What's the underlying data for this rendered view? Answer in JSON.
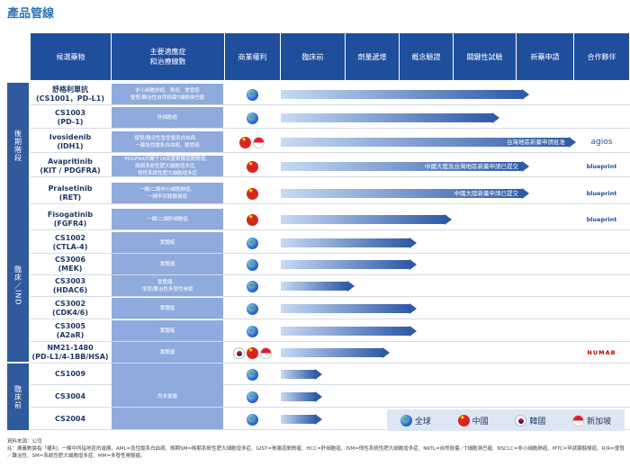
{
  "title": "產品管線",
  "header": {
    "drug": "候選藥物",
    "indication": "主要適應症\n和治療線數",
    "rights": "商業權利",
    "preclinical": "臨床前",
    "dose": "劑量遞增",
    "poc": "概念驗證",
    "pivotal": "關鍵性試驗",
    "nda": "新藥申請",
    "partner": "合作夥伴"
  },
  "groups": [
    {
      "label": "後期階段"
    },
    {
      "label": "臨床／IND"
    },
    {
      "label": "臨床前"
    }
  ],
  "rows": [
    {
      "drug": "舒格利單抗\n(CS1001，PD-L1)",
      "indication": "非小細胞肺癌、胃癌、食管癌\n復發/難治性自然殺傷T細胞淋巴瘤",
      "rights": [
        "globe"
      ],
      "progress": 0.84,
      "bar_text": "",
      "partner": ""
    },
    {
      "drug": "CS1003\n(PD-1)",
      "indication": "肝細胞癌",
      "rights": [
        "globe"
      ],
      "progress": 0.74,
      "bar_text": "",
      "partner": ""
    },
    {
      "drug": "Ivosidenib\n(IDH1)",
      "indication": "復發/難治性急性髓系白血病、\n一線急性髓系白血病、膽管癌",
      "rights": [
        "cn",
        "sg"
      ],
      "progress": 1.0,
      "bar_text": "台灣地區新藥申請批准",
      "partner": "agios"
    },
    {
      "drug": "Avapritinib\n(KIT / PDGFRA)",
      "indication": "PDGFRA外顯子18突變胃腸道間質瘤、\n晚期系統性肥大細胞增多症、\n惰性系統性肥大細胞增多症",
      "rights": [
        "cn"
      ],
      "progress": 0.84,
      "bar_text": "中國大陸及台灣地區新藥申請已提交",
      "partner": "blueprint"
    },
    {
      "drug": "Pralsetinib\n(RET)",
      "indication": "一線/二線非小細胞肺癌、\n一線甲狀腺髓樣癌",
      "rights": [
        "cn"
      ],
      "progress": 0.84,
      "bar_text": "中國大陸新藥申請已提交",
      "partner": "blueprint"
    },
    {
      "drug": "Fisogatinib\n(FGFR4)",
      "indication": "一線/二線肝細胞癌",
      "rights": [
        "cn"
      ],
      "progress": 0.58,
      "bar_text": "",
      "partner": "blueprint"
    },
    {
      "drug": "CS1002\n(CTLA-4)",
      "indication": "實體瘤",
      "rights": [
        "globe"
      ],
      "progress": 0.46,
      "bar_text": "",
      "partner": ""
    },
    {
      "drug": "CS3006\n(MEK)",
      "indication": "實體瘤",
      "rights": [
        "globe"
      ],
      "progress": 0.46,
      "bar_text": "",
      "partner": ""
    },
    {
      "drug": "CS3003\n(HDAC6)",
      "indication": "實體瘤、\n復發/難治性多發性骨髓",
      "rights": [
        "globe"
      ],
      "progress": 0.25,
      "bar_text": "",
      "partner": ""
    },
    {
      "drug": "CS3002\n(CDK4/6)",
      "indication": "實體瘤",
      "rights": [
        "globe"
      ],
      "progress": 0.46,
      "bar_text": "",
      "partner": ""
    },
    {
      "drug": "CS3005\n(A2aR)",
      "indication": "實體瘤",
      "rights": [
        "globe"
      ],
      "progress": 0.46,
      "bar_text": "",
      "partner": ""
    },
    {
      "drug": "NM21-1480\n(PD-L1/4-1BB/HSA)",
      "indication": "實體瘤",
      "rights": [
        "kr",
        "cn",
        "sg"
      ],
      "progress": 0.37,
      "bar_text": "",
      "partner": "numab"
    },
    {
      "drug": "CS1009",
      "indication": "",
      "rights": [
        "globe"
      ],
      "progress": 0.14,
      "bar_text": "",
      "partner": ""
    },
    {
      "drug": "CS3004",
      "indication": "尚未披露",
      "rights": [
        "globe"
      ],
      "progress": 0.14,
      "bar_text": "",
      "partner": ""
    },
    {
      "drug": "CS2004",
      "indication": "",
      "rights": [
        "globe"
      ],
      "progress": 0.14,
      "bar_text": "",
      "partner": ""
    }
  ],
  "partners": {
    "agios": "agios",
    "blueprint": "blueprint",
    "numab": "NUMAB"
  },
  "legend": {
    "global": "全球",
    "china": "中國",
    "korea": "韓國",
    "singapore": "新加坡"
  },
  "notes": {
    "source": "資料來源：公司",
    "text": "註：廣義數據指「權利」一欄中所指地區的進展。AML=急性髓系白血病、晚期SM=晚期系統性肥大細胞增多症、GIST=胃腸道間質瘤、HCC=肝細胞癌、ISM=惰性系統性肥大細胞增多症、NKTL=自然殺傷／T細胞淋巴瘤、NSCLC=非小細胞肺癌、MTC=甲狀腺髓樣癌、R/R=復發／難治性、SM=系統性肥大細胞增多症、MM=多發性骨髓瘤。"
  }
}
